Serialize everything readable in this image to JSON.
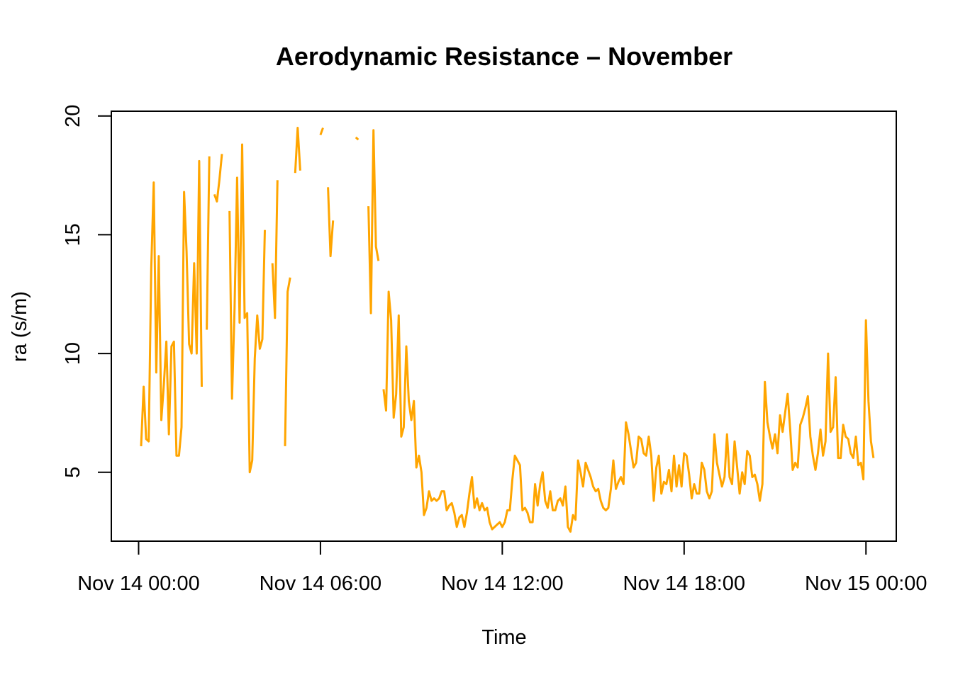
{
  "chart_data": {
    "type": "line",
    "title": "Aerodynamic Resistance – November",
    "xlabel": "Time",
    "ylabel": "ra (s/m)",
    "x_unit": "hours since Nov 14 00:00",
    "xlim": [
      -0.9,
      25.0
    ],
    "ylim": [
      2.1,
      20.2
    ],
    "x_ticks": [
      {
        "value": 0,
        "label": "Nov 14 00:00"
      },
      {
        "value": 6,
        "label": "Nov 14 06:00"
      },
      {
        "value": 12,
        "label": "Nov 14 12:00"
      },
      {
        "value": 18,
        "label": "Nov 14 18:00"
      },
      {
        "value": 24,
        "label": "Nov 15 00:00"
      }
    ],
    "y_ticks": [
      {
        "value": 5,
        "label": "5"
      },
      {
        "value": 10,
        "label": "10"
      },
      {
        "value": 15,
        "label": "15"
      },
      {
        "value": 20,
        "label": "20"
      }
    ],
    "grid": false,
    "series": [
      {
        "color": "#FFA500",
        "x_step_hours": 0.08333,
        "x_start": 0.083,
        "values": [
          6.1,
          8.6,
          6.4,
          6.3,
          13.6,
          17.2,
          9.2,
          14.1,
          7.2,
          8.7,
          10.5,
          6.6,
          10.3,
          10.5,
          5.7,
          5.7,
          6.9,
          16.8,
          14.3,
          10.4,
          10.0,
          13.8,
          10.0,
          18.1,
          8.6,
          null,
          11.0,
          18.3,
          null,
          16.7,
          16.4,
          17.3,
          18.4,
          null,
          null,
          16.0,
          8.1,
          11.9,
          17.4,
          11.3,
          18.8,
          11.5,
          11.7,
          5.0,
          5.5,
          9.8,
          11.6,
          10.2,
          10.6,
          15.2,
          null,
          null,
          13.8,
          11.5,
          17.3,
          null,
          null,
          6.1,
          12.6,
          13.2,
          null,
          17.6,
          19.5,
          17.7,
          null,
          null,
          null,
          null,
          null,
          null,
          null,
          19.2,
          19.5,
          null,
          17.0,
          14.1,
          15.6,
          null,
          null,
          null,
          null,
          null,
          null,
          null,
          null,
          19.1,
          19.0,
          null,
          null,
          null,
          16.2,
          11.7,
          19.4,
          14.5,
          13.9,
          null,
          8.5,
          7.6,
          12.6,
          11.4,
          7.3,
          8.3,
          11.6,
          6.5,
          6.9,
          10.3,
          8.0,
          7.2,
          8.0,
          5.2,
          5.7,
          5.0,
          3.2,
          3.5,
          4.2,
          3.8,
          3.9,
          3.8,
          3.9,
          4.2,
          4.2,
          3.4,
          3.6,
          3.7,
          3.3,
          2.7,
          3.1,
          3.2,
          2.7,
          3.3,
          4.1,
          4.8,
          3.5,
          3.9,
          3.4,
          3.7,
          3.4,
          3.5,
          2.9,
          2.6,
          2.7,
          2.8,
          2.9,
          2.7,
          2.9,
          3.4,
          3.4,
          4.7,
          5.7,
          5.5,
          5.3,
          3.4,
          3.5,
          3.3,
          2.9,
          2.9,
          4.5,
          3.6,
          4.5,
          5.0,
          3.8,
          3.5,
          4.2,
          3.4,
          3.4,
          3.8,
          3.9,
          3.6,
          4.4,
          2.7,
          2.5,
          3.2,
          3.0,
          5.5,
          5.0,
          4.4,
          5.4,
          5.1,
          4.8,
          4.4,
          4.2,
          4.3,
          3.8,
          3.5,
          3.4,
          3.5,
          4.3,
          5.5,
          4.3,
          4.6,
          4.8,
          4.5,
          7.1,
          6.6,
          5.9,
          5.2,
          5.4,
          6.5,
          6.4,
          5.8,
          5.7,
          6.5,
          5.7,
          3.8,
          5.2,
          5.7,
          4.1,
          4.6,
          4.5,
          5.1,
          4.2,
          5.7,
          4.4,
          5.3,
          4.4,
          5.8,
          5.7,
          4.9,
          3.9,
          4.5,
          4.1,
          4.1,
          5.4,
          5.1,
          4.2,
          3.9,
          4.2,
          6.6,
          5.4,
          4.9,
          4.4,
          4.8,
          6.6,
          4.8,
          4.5,
          6.3,
          5.2,
          4.1,
          5.0,
          4.5,
          5.9,
          5.7,
          4.8,
          4.9,
          4.5,
          3.8,
          4.5,
          8.8,
          7.1,
          6.5,
          6.0,
          6.6,
          5.8,
          7.4,
          6.7,
          7.5,
          8.3,
          6.8,
          5.1,
          5.4,
          5.2,
          7.0,
          7.3,
          7.7,
          8.2,
          6.5,
          5.7,
          5.1,
          5.8,
          6.8,
          5.7,
          6.3,
          10.0,
          6.7,
          6.9,
          9.0,
          5.6,
          5.6,
          7.0,
          6.5,
          6.4,
          5.8,
          5.6,
          6.5,
          5.3,
          5.4,
          4.7,
          11.4,
          8.0,
          6.3,
          5.6
        ]
      }
    ]
  }
}
